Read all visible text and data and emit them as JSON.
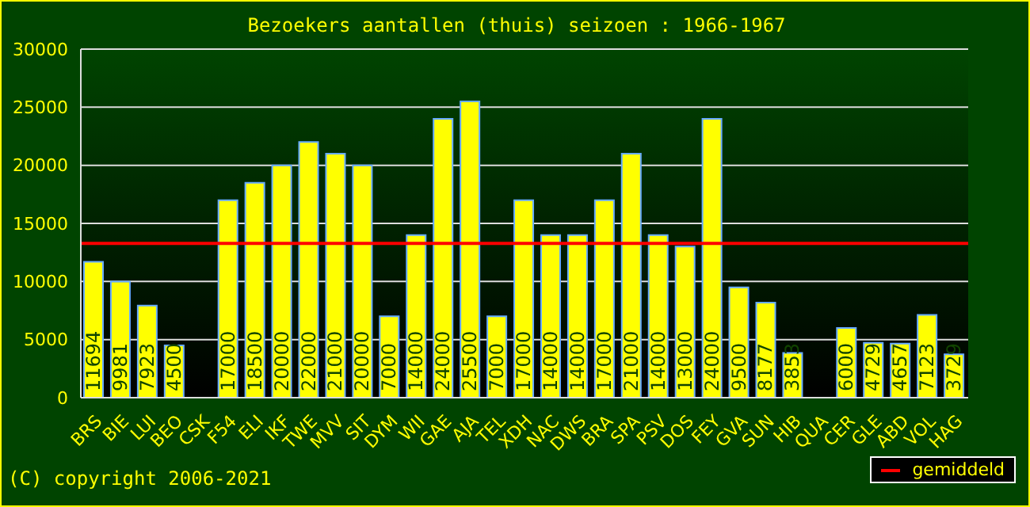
{
  "chart_data": {
    "type": "bar",
    "title": "Bezoekers aantallen (thuis) seizoen : 1966-1967",
    "categories": [
      "BRS",
      "BIE",
      "LUI",
      "BEO",
      "CSK",
      "F54",
      "ELI",
      "IKF",
      "TWE",
      "MVV",
      "SIT",
      "DYM",
      "WII",
      "GAE",
      "AJA",
      "TEL",
      "XDH",
      "NAC",
      "DWS",
      "BRA",
      "SPA",
      "PSV",
      "DOS",
      "FEY",
      "GVA",
      "SUN",
      "HIB",
      "QUA",
      "CER",
      "GLE",
      "ABD",
      "VOL",
      "HAG"
    ],
    "values": [
      11694,
      9981,
      7923,
      4500,
      null,
      17000,
      18500,
      20000,
      22000,
      21000,
      20000,
      7000,
      14000,
      24000,
      25500,
      7000,
      17000,
      14000,
      14000,
      17000,
      21000,
      14000,
      13000,
      24000,
      9500,
      8177,
      3853,
      null,
      6000,
      4729,
      4657,
      7123,
      3729
    ],
    "color": "#ffff00",
    "data_labels": true,
    "ylim": [
      0,
      30000
    ],
    "yticks": [
      0,
      5000,
      10000,
      15000,
      20000,
      25000,
      30000
    ],
    "grid": "y",
    "ref_lines": [
      {
        "axis": "y",
        "value": 13286,
        "label": "gemiddeld",
        "color": "#ff0000"
      }
    ],
    "legend": "bottom right",
    "annotations": [
      "(C) copyright 2006-2021"
    ]
  }
}
